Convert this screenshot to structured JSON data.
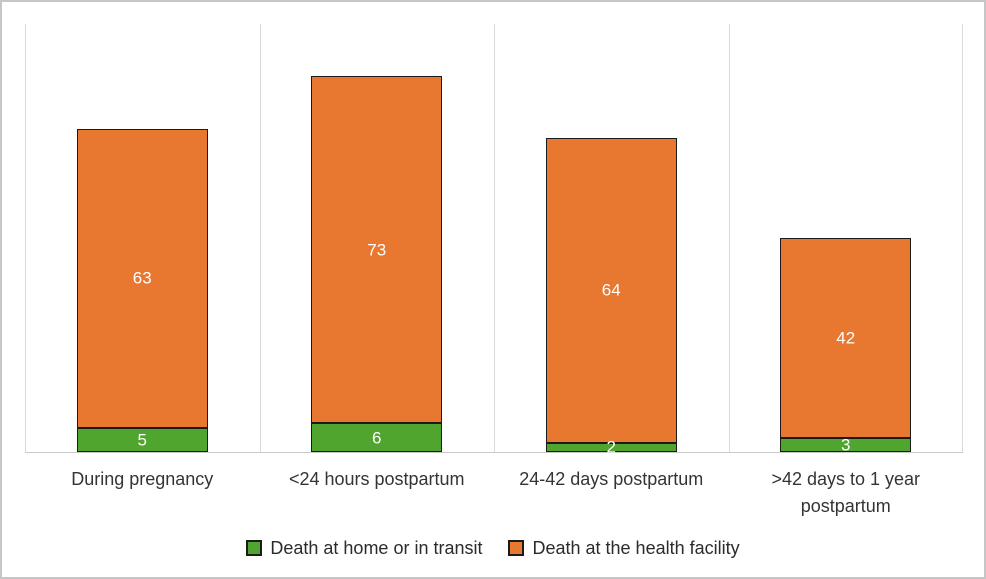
{
  "chart_data": {
    "type": "bar",
    "stacked": true,
    "title": "",
    "xlabel": "",
    "ylabel": "",
    "categories": [
      "During pregnancy",
      "<24 hours postpartum",
      "24-42 days postpartum",
      ">42 days to 1 year postpartum"
    ],
    "series": [
      {
        "name": "Death at home or in transit",
        "color": "#4fa52d",
        "values": [
          5,
          6,
          2,
          3
        ]
      },
      {
        "name": "Death at the health facility",
        "color": "#e8772f",
        "values": [
          63,
          73,
          64,
          42
        ]
      }
    ],
    "ylim": [
      0,
      90
    ],
    "y_axis_visible": false,
    "grid": "vertical category separators only",
    "gridline_color": "#dadada",
    "bar_border_color": "#1b1b1b",
    "data_label_color": "#ffffff",
    "legend_position": "bottom-center"
  }
}
